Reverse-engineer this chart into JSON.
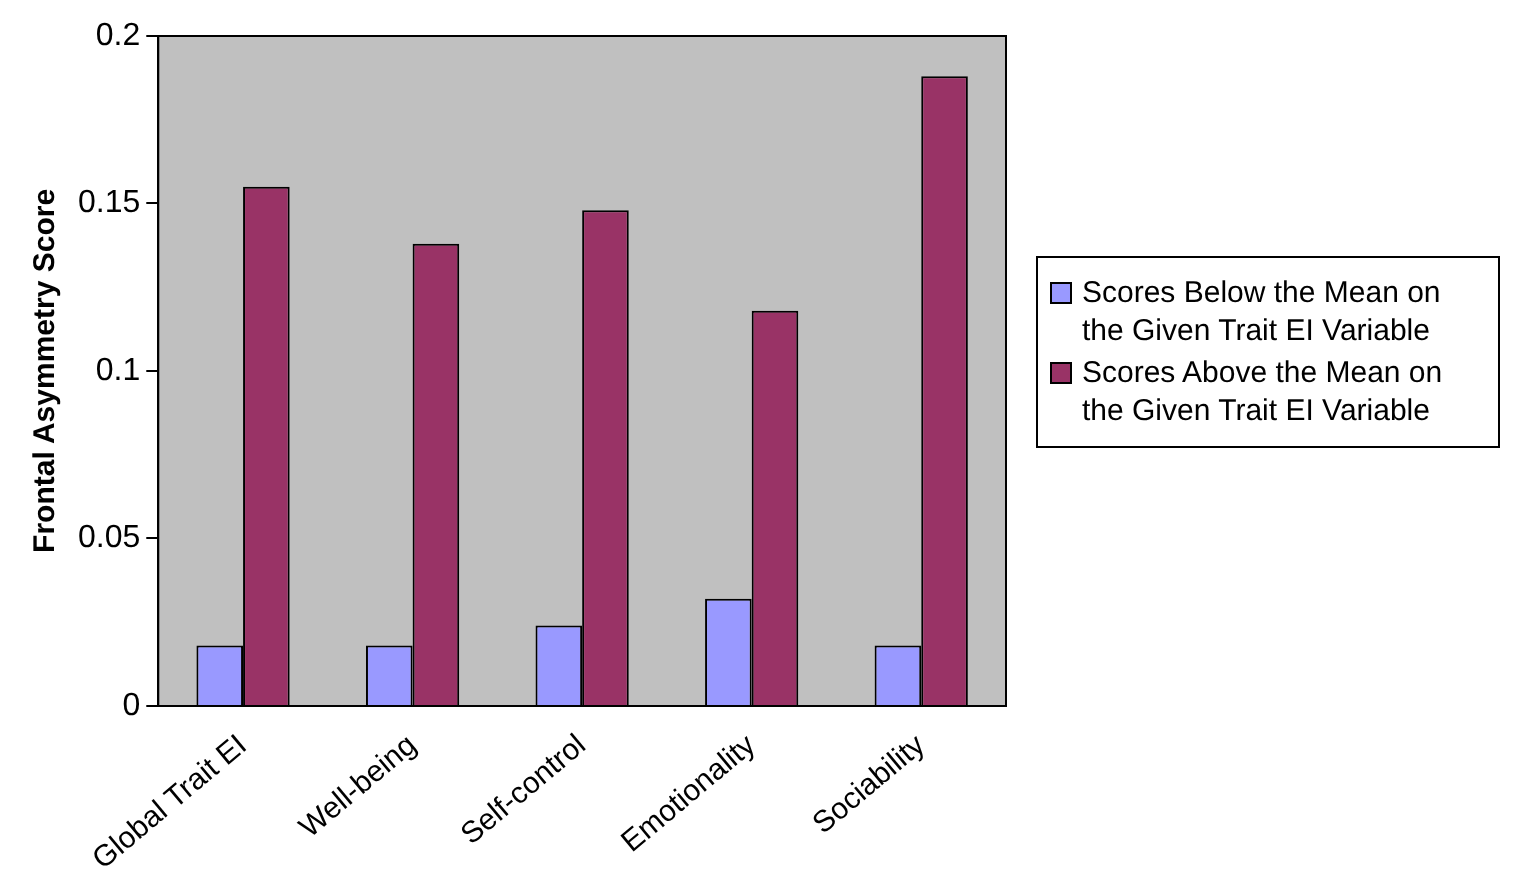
{
  "chart_data": {
    "type": "bar",
    "ylabel": "Frontal Asymmetry Score",
    "categories": [
      "Global Trait EI",
      "Well-being",
      "Self-control",
      "Emotionality",
      "Sociability"
    ],
    "series": [
      {
        "name": "Scores Below the Mean on the Given Trait EI Variable",
        "color": "#9999ff",
        "values": [
          0.018,
          0.018,
          0.024,
          0.032,
          0.018
        ]
      },
      {
        "name": "Scores Above the Mean on the Given Trait EI Variable",
        "color": "#993366",
        "values": [
          0.155,
          0.138,
          0.148,
          0.118,
          0.188
        ]
      }
    ],
    "ylim": [
      0,
      0.2
    ],
    "yticks": [
      0,
      0.05,
      0.1,
      0.15,
      0.2
    ],
    "grid": false,
    "legend": "right"
  }
}
